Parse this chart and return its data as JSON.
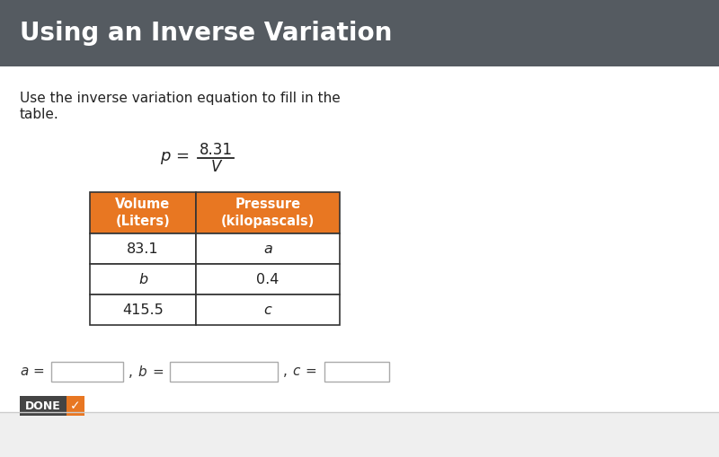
{
  "title": "Using an Inverse Variation",
  "title_bg": "#555b61",
  "title_color": "#ffffff",
  "body_bg": "#ffffff",
  "instruction_line1": "Use the inverse variation equation to fill in the",
  "instruction_line2": "table.",
  "equation_num": "8.31",
  "equation_den": "V",
  "col1_header": "Volume\n(Liters)",
  "col2_header": "Pressure\n(kilopascals)",
  "header_bg": "#e87722",
  "header_color": "#ffffff",
  "table_border": "#333333",
  "rows": [
    [
      "83.1",
      "a"
    ],
    [
      "b",
      "0.4"
    ],
    [
      "415.5",
      "c"
    ]
  ],
  "row_italic": [
    [
      false,
      true
    ],
    [
      true,
      false
    ],
    [
      false,
      true
    ]
  ],
  "row_bg": "#ffffff",
  "done_bg": "#444444",
  "done_color": "#ffffff",
  "check_bg": "#e87722",
  "check_color": "#ffffff",
  "bottom_bg": "#efefef",
  "bottom_line": "#cccccc"
}
